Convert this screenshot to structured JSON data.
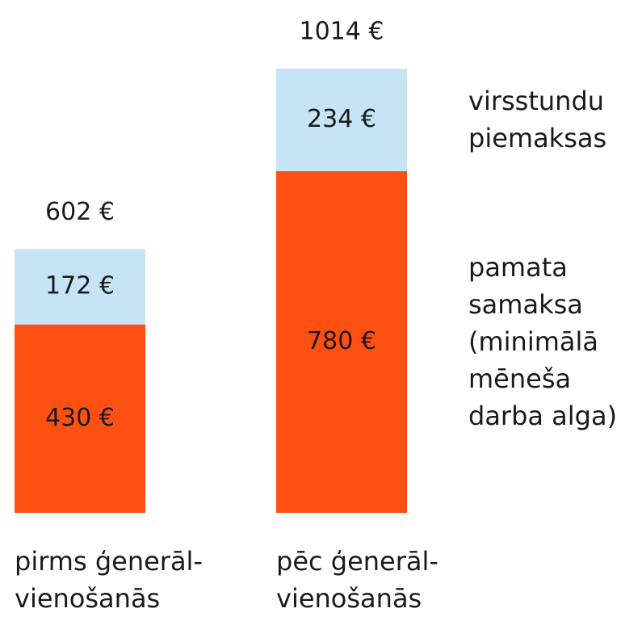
{
  "chart_data": {
    "type": "stacked_bar",
    "categories": [
      "pirms ģenerāl-vienošanās",
      "pēc ģenerāl-vienošanās"
    ],
    "series": [
      {
        "name": "pamata samaksa (minimālā mēneša darba alga)",
        "color": "#ff5014",
        "values": [
          430,
          780
        ],
        "value_labels": [
          "430 €",
          "780 €"
        ]
      },
      {
        "name": "virsstundu piemaksas",
        "color": "#c6e4f4",
        "values": [
          172,
          234
        ],
        "value_labels": [
          "172 €",
          "234 €"
        ]
      }
    ],
    "totals": [
      602,
      1014
    ],
    "total_labels": [
      "602 €",
      "1014 €"
    ]
  }
}
